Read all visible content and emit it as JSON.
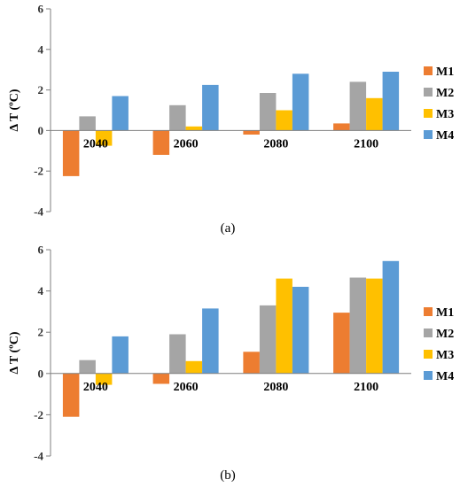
{
  "colors": {
    "M1": "#ED7D31",
    "M2": "#A5A5A5",
    "M3": "#FFC000",
    "M4": "#5B9BD5",
    "axis": "#7f7f7f"
  },
  "chart_data": [
    {
      "type": "bar",
      "caption": "(a)",
      "ylabel": "Δ T (ºC)",
      "ylim": [
        -4,
        6
      ],
      "yticks": [
        -4,
        -2,
        0,
        2,
        4,
        6
      ],
      "categories": [
        "2040",
        "2060",
        "2080",
        "2100"
      ],
      "legend_position": "right",
      "series": [
        {
          "name": "M1",
          "values": [
            -2.25,
            -1.2,
            -0.2,
            0.35
          ]
        },
        {
          "name": "M2",
          "values": [
            0.7,
            1.25,
            1.85,
            2.4
          ]
        },
        {
          "name": "M3",
          "values": [
            -0.75,
            0.2,
            1.0,
            1.6
          ]
        },
        {
          "name": "M4",
          "values": [
            1.7,
            2.25,
            2.8,
            2.9
          ]
        }
      ]
    },
    {
      "type": "bar",
      "caption": "(b)",
      "ylabel": "Δ T (ºC)",
      "ylim": [
        -4,
        6
      ],
      "yticks": [
        -4,
        -2,
        0,
        2,
        4,
        6
      ],
      "categories": [
        "2040",
        "2060",
        "2080",
        "2100"
      ],
      "legend_position": "right",
      "series": [
        {
          "name": "M1",
          "values": [
            -2.1,
            -0.5,
            1.05,
            2.95
          ]
        },
        {
          "name": "M2",
          "values": [
            0.65,
            1.9,
            3.3,
            4.65
          ]
        },
        {
          "name": "M3",
          "values": [
            -0.55,
            0.6,
            4.6,
            4.6
          ]
        },
        {
          "name": "M4",
          "values": [
            1.8,
            3.15,
            4.2,
            5.45
          ]
        }
      ]
    }
  ]
}
